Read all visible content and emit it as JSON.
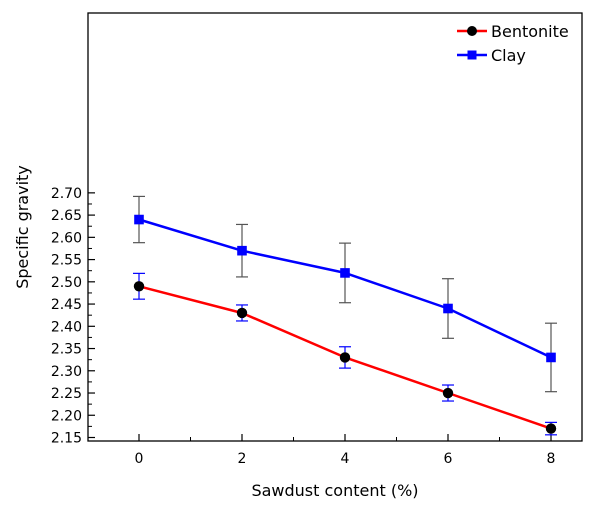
{
  "chart_data": {
    "type": "line",
    "title": "",
    "xlabel": "Sawdust content (%)",
    "ylabel": "Specific gravity",
    "x": [
      0,
      2,
      4,
      6,
      8
    ],
    "xlim": [
      -1,
      9
    ],
    "ylim": [
      2.14,
      2.72
    ],
    "x_ticks": [
      "0",
      "2",
      "4",
      "6",
      "8"
    ],
    "y_ticks": [
      "2.15",
      "2.20",
      "2.25",
      "2.30",
      "2.35",
      "2.40",
      "2.45",
      "2.50",
      "2.55",
      "2.60",
      "2.65",
      "2.70"
    ],
    "grid": false,
    "legend_position": "top-right",
    "series": [
      {
        "name": "Bentonite",
        "line_color": "#ff0000",
        "marker": "circle",
        "marker_color": "#000000",
        "errorbar_color": "#0000ff",
        "values": [
          2.49,
          2.43,
          2.33,
          2.25,
          2.17
        ],
        "error": [
          0.029,
          0.018,
          0.024,
          0.018,
          0.014
        ]
      },
      {
        "name": "Clay",
        "line_color": "#0000ff",
        "marker": "square",
        "marker_color": "#0000ff",
        "errorbar_color": "#555555",
        "values": [
          2.64,
          2.57,
          2.52,
          2.44,
          2.33
        ],
        "error": [
          0.052,
          0.059,
          0.067,
          0.067,
          0.077
        ]
      }
    ]
  }
}
